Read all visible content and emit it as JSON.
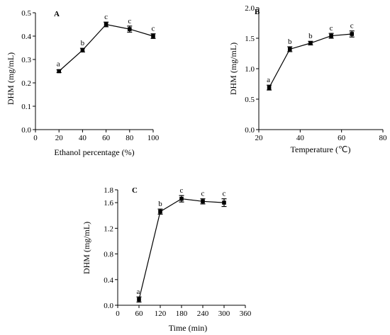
{
  "chart_data": [
    {
      "type": "line",
      "panel_label": "A",
      "xlabel": "Ethanol percentage (%)",
      "ylabel": "DHM (mg/mL)",
      "xlim": [
        0,
        100
      ],
      "ylim": [
        0,
        0.5
      ],
      "xticks": [
        0,
        20,
        40,
        60,
        80,
        100
      ],
      "yticks": [
        0.0,
        0.1,
        0.2,
        0.3,
        0.4,
        0.5
      ],
      "xtick_labels": [
        "0",
        "20",
        "40",
        "60",
        "80",
        "100"
      ],
      "ytick_labels": [
        "0.0",
        "0.1",
        "0.2",
        "0.3",
        "0.4",
        "0.5"
      ],
      "series": [
        {
          "x": [
            20,
            40,
            60,
            80,
            100
          ],
          "y": [
            0.25,
            0.34,
            0.45,
            0.43,
            0.4
          ],
          "error": [
            0.006,
            0.008,
            0.01,
            0.013,
            0.01
          ],
          "letters": [
            "a",
            "b",
            "c",
            "c",
            "c"
          ]
        }
      ]
    },
    {
      "type": "line",
      "panel_label": "B",
      "xlabel": "Temperature (℃)",
      "ylabel": "DHM (mg/mL)",
      "xlim": [
        20,
        80
      ],
      "ylim": [
        0,
        2.0
      ],
      "xticks": [
        20,
        40,
        60,
        80
      ],
      "yticks": [
        0.0,
        0.5,
        1.0,
        1.5,
        2.0
      ],
      "xtick_labels": [
        "20",
        "40",
        "60",
        "80"
      ],
      "ytick_labels": [
        "0.0",
        "0.5",
        "1.0",
        "1.5",
        "2.0"
      ],
      "series": [
        {
          "x": [
            25,
            35,
            45,
            55,
            65
          ],
          "y": [
            0.69,
            1.32,
            1.42,
            1.54,
            1.57
          ],
          "error": [
            0.04,
            0.04,
            0.03,
            0.04,
            0.05
          ],
          "letters": [
            "a",
            "b",
            "b",
            "c",
            "c"
          ]
        }
      ]
    },
    {
      "type": "line",
      "panel_label": "C",
      "xlabel": "Time (min)",
      "ylabel": "DHM (mg/mL)",
      "xlim": [
        0,
        360
      ],
      "ylim": [
        0.0,
        1.8
      ],
      "xticks": [
        0,
        60,
        120,
        180,
        240,
        300,
        360
      ],
      "yticks": [
        0.0,
        0.4,
        0.8,
        1.2,
        1.6
      ],
      "extra_ytick_labels": [
        {
          "value": 1.8,
          "label": "1.8"
        }
      ],
      "xtick_labels": [
        "0",
        "60",
        "120",
        "180",
        "240",
        "300",
        "360"
      ],
      "ytick_labels": [
        "0.0",
        "0.4",
        "0.8",
        "1.2",
        "1.6"
      ],
      "series": [
        {
          "x": [
            60,
            120,
            180,
            240,
            300
          ],
          "y": [
            0.09,
            1.46,
            1.66,
            1.62,
            1.6
          ],
          "error": [
            0.04,
            0.04,
            0.05,
            0.04,
            0.06
          ],
          "letters": [
            "a",
            "b",
            "c",
            "c",
            "c"
          ]
        }
      ]
    }
  ]
}
